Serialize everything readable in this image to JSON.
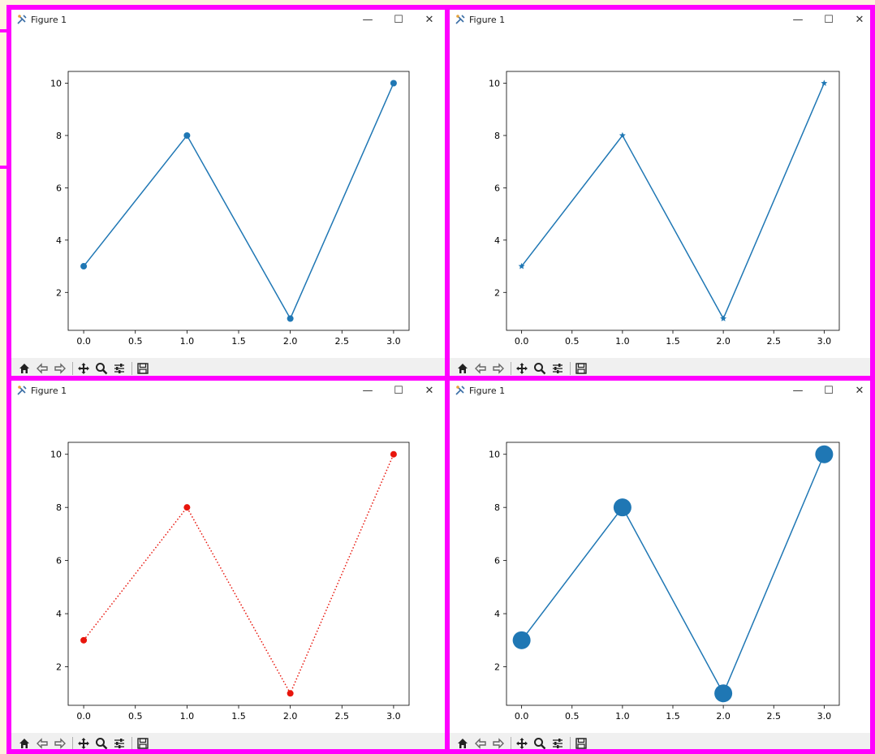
{
  "windows": [
    {
      "title": "Figure 1"
    },
    {
      "title": "Figure 1"
    },
    {
      "title": "Figure 1"
    },
    {
      "title": "Figure 1"
    }
  ],
  "controls": {
    "minimize": "—",
    "maximize": "☐",
    "close": "✕"
  },
  "toolbar_icons": [
    "home-icon",
    "back-icon",
    "forward-icon",
    "pan-icon",
    "zoom-icon",
    "configure-icon",
    "save-icon"
  ],
  "chart_data": [
    {
      "type": "line",
      "x": [
        0,
        1,
        2,
        3
      ],
      "y": [
        3,
        8,
        1,
        10
      ],
      "xlim": [
        -0.15,
        3.15
      ],
      "ylim": [
        0.55,
        10.45
      ],
      "xticks": [
        "0.0",
        "0.5",
        "1.0",
        "1.5",
        "2.0",
        "2.5",
        "3.0"
      ],
      "yticks": [
        "2",
        "4",
        "6",
        "8",
        "10"
      ],
      "marker": "circle",
      "marker_size": "small",
      "linestyle": "solid",
      "color": "#1f77b4"
    },
    {
      "type": "line",
      "x": [
        0,
        1,
        2,
        3
      ],
      "y": [
        3,
        8,
        1,
        10
      ],
      "xlim": [
        -0.15,
        3.15
      ],
      "ylim": [
        0.55,
        10.45
      ],
      "xticks": [
        "0.0",
        "0.5",
        "1.0",
        "1.5",
        "2.0",
        "2.5",
        "3.0"
      ],
      "yticks": [
        "2",
        "4",
        "6",
        "8",
        "10"
      ],
      "marker": "star",
      "marker_size": "small",
      "linestyle": "solid",
      "color": "#1f77b4"
    },
    {
      "type": "line",
      "x": [
        0,
        1,
        2,
        3
      ],
      "y": [
        3,
        8,
        1,
        10
      ],
      "xlim": [
        -0.15,
        3.15
      ],
      "ylim": [
        0.55,
        10.45
      ],
      "xticks": [
        "0.0",
        "0.5",
        "1.0",
        "1.5",
        "2.0",
        "2.5",
        "3.0"
      ],
      "yticks": [
        "2",
        "4",
        "6",
        "8",
        "10"
      ],
      "marker": "circle",
      "marker_size": "small",
      "linestyle": "dotted",
      "color": "#e8150c"
    },
    {
      "type": "line",
      "x": [
        0,
        1,
        2,
        3
      ],
      "y": [
        3,
        8,
        1,
        10
      ],
      "xlim": [
        -0.15,
        3.15
      ],
      "ylim": [
        0.55,
        10.45
      ],
      "xticks": [
        "0.0",
        "0.5",
        "1.0",
        "1.5",
        "2.0",
        "2.5",
        "3.0"
      ],
      "yticks": [
        "2",
        "4",
        "6",
        "8",
        "10"
      ],
      "marker": "circle",
      "marker_size": "large",
      "linestyle": "solid",
      "color": "#1f77b4"
    }
  ]
}
